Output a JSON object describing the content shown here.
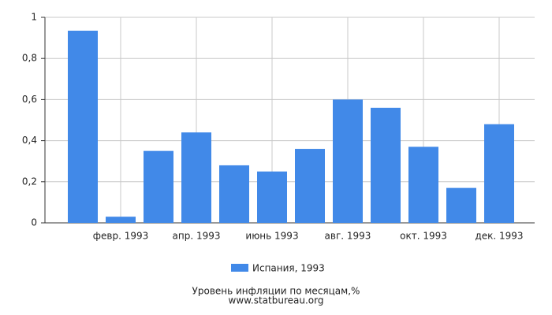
{
  "chart_data": {
    "type": "bar",
    "title": "Уровень инфляции по месяцам,%",
    "source": "www.statbureau.org",
    "categories": [
      null,
      "февр. 1993",
      null,
      "апр. 1993",
      null,
      "июнь 1993",
      null,
      "авг. 1993",
      null,
      "окт. 1993",
      null,
      "дек. 1993"
    ],
    "series": [
      {
        "name": "Испания, 1993",
        "color": "#4189e8",
        "values": [
          0.935,
          0.03,
          0.35,
          0.44,
          0.28,
          0.25,
          0.36,
          0.6,
          0.56,
          0.37,
          0.17,
          0.48
        ]
      }
    ],
    "ylim": [
      0,
      1
    ],
    "yticks": [
      0,
      {
        "value": 0.2,
        "label": "0,2"
      },
      {
        "value": 0.4,
        "label": "0,4"
      },
      {
        "value": 0.6,
        "label": "0,6"
      },
      {
        "value": 0.8,
        "label": "0,8"
      },
      1
    ],
    "grid": true
  }
}
